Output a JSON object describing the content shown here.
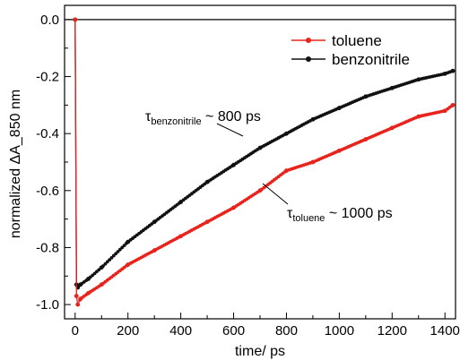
{
  "chart_data": {
    "type": "scatter",
    "xlabel": "time/ ps",
    "ylabel": "normalized ΔA_850 nm",
    "xlim": [
      -40,
      1440
    ],
    "ylim": [
      -1.05,
      0.05
    ],
    "xticks": [
      0,
      200,
      400,
      600,
      800,
      1000,
      1200,
      1400
    ],
    "xtick_labels": [
      "0",
      "200",
      "400",
      "600",
      "800",
      "1000",
      "1200",
      "1400"
    ],
    "yticks": [
      0.0,
      -0.2,
      -0.4,
      -0.6,
      -0.8,
      -1.0
    ],
    "ytick_labels": [
      "0.0",
      "-0.2",
      "-0.4",
      "-0.6",
      "-0.8",
      "-1.0"
    ],
    "baseline": 0.0,
    "grid": false,
    "legend_position": "top-right",
    "series": [
      {
        "name": "toluene",
        "color": "#e8231c",
        "x": [
          0,
          5,
          10,
          20,
          50,
          100,
          200,
          300,
          400,
          500,
          600,
          700,
          800,
          900,
          1000,
          1100,
          1200,
          1300,
          1400,
          1430
        ],
        "y": [
          0.0,
          -0.97,
          -1.0,
          -0.98,
          -0.96,
          -0.93,
          -0.86,
          -0.81,
          -0.76,
          -0.71,
          -0.66,
          -0.6,
          -0.53,
          -0.5,
          -0.46,
          -0.42,
          -0.38,
          -0.34,
          -0.32,
          -0.3
        ]
      },
      {
        "name": "benzonitrile",
        "color": "#111111",
        "x": [
          0,
          5,
          10,
          20,
          50,
          100,
          200,
          300,
          400,
          500,
          600,
          700,
          800,
          900,
          1000,
          1100,
          1200,
          1300,
          1400,
          1430
        ],
        "y": [
          0.0,
          -0.93,
          -0.94,
          -0.93,
          -0.91,
          -0.87,
          -0.78,
          -0.71,
          -0.64,
          -0.57,
          -0.51,
          -0.45,
          -0.4,
          -0.35,
          -0.31,
          -0.27,
          -0.24,
          -0.21,
          -0.19,
          -0.18
        ]
      }
    ],
    "annotations": [
      {
        "prefix": "τ",
        "subscript": "benzonitrile",
        "text": " ~ 800 ps"
      },
      {
        "prefix": "τ",
        "subscript": "toluene",
        "text": " ~ 1000 ps"
      }
    ]
  }
}
